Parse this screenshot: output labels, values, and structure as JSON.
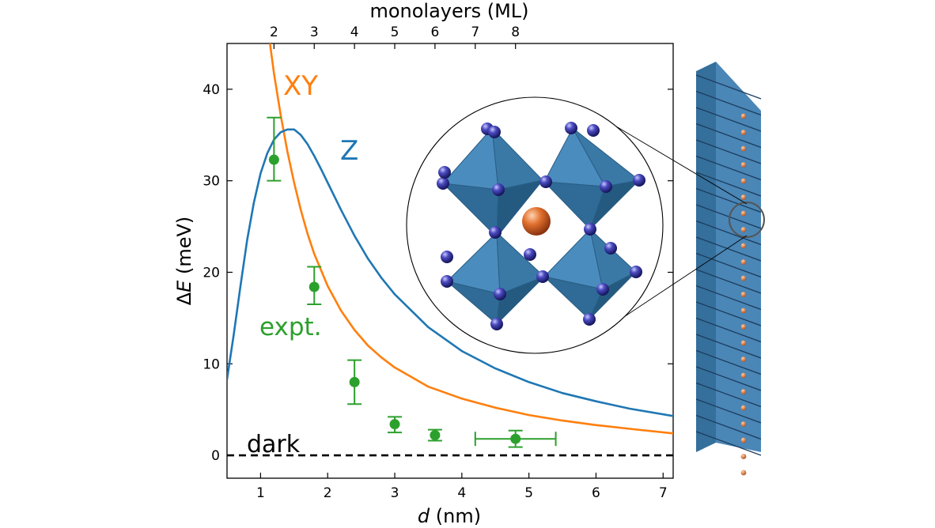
{
  "chart_data": {
    "type": "line",
    "x_axis": {
      "label_italic": "d",
      "label_rest": " (nm)",
      "range": [
        0.5,
        7.15
      ],
      "ticks": [
        1,
        2,
        3,
        4,
        5,
        6,
        7
      ]
    },
    "x_top_axis": {
      "label": "monolayers (ML)",
      "ticks": [
        "2",
        "3",
        "4",
        "5",
        "6",
        "7",
        "8"
      ],
      "tick_positions_nm": [
        1.2,
        1.8,
        2.4,
        3.0,
        3.6,
        4.2,
        4.8
      ]
    },
    "y_axis": {
      "label_prefix": "Δ",
      "label_italic": "E",
      "label_rest": " (meV)",
      "range": [
        -2.5,
        45
      ],
      "ticks": [
        0,
        10,
        20,
        30,
        40
      ]
    },
    "series": [
      {
        "name": "XY",
        "color": "#ff7f0e",
        "x": [
          1.14,
          1.2,
          1.3,
          1.4,
          1.5,
          1.6,
          1.7,
          1.8,
          2.0,
          2.2,
          2.4,
          2.6,
          2.8,
          3.0,
          3.5,
          4.0,
          4.5,
          5.0,
          5.5,
          6.0,
          6.5,
          7.15
        ],
        "y": [
          45,
          41.7,
          37.2,
          33.2,
          29.8,
          26.8,
          24.2,
          22.0,
          18.5,
          15.8,
          13.7,
          12.0,
          10.7,
          9.6,
          7.5,
          6.2,
          5.2,
          4.4,
          3.8,
          3.3,
          2.9,
          2.4
        ]
      },
      {
        "name": "Z",
        "color": "#1f77b4",
        "x": [
          0.5,
          0.6,
          0.7,
          0.8,
          0.9,
          1.0,
          1.1,
          1.2,
          1.3,
          1.4,
          1.5,
          1.6,
          1.7,
          1.8,
          1.9,
          2.0,
          2.2,
          2.4,
          2.6,
          2.8,
          3.0,
          3.5,
          4.0,
          4.5,
          5.0,
          5.5,
          6.0,
          6.5,
          7.15
        ],
        "y": [
          8.3,
          13.2,
          18.5,
          23.5,
          27.6,
          30.8,
          33.0,
          34.5,
          35.3,
          35.6,
          35.6,
          35.0,
          34.0,
          32.7,
          31.3,
          29.8,
          26.8,
          24.0,
          21.5,
          19.4,
          17.6,
          14.0,
          11.4,
          9.5,
          8.0,
          6.8,
          5.9,
          5.1,
          4.3
        ]
      },
      {
        "name": "expt.",
        "color": "#2ca02c",
        "kind": "errorbar",
        "points": [
          {
            "x": 1.2,
            "y": 32.3,
            "yerr": [
              2.3,
              4.6
            ],
            "xerr": 0
          },
          {
            "x": 1.8,
            "y": 18.4,
            "yerr": [
              1.9,
              2.2
            ],
            "xerr": 0
          },
          {
            "x": 2.4,
            "y": 8.0,
            "yerr": [
              2.4,
              2.4
            ],
            "xerr": 0
          },
          {
            "x": 3.0,
            "y": 3.4,
            "yerr": [
              0.9,
              0.8
            ],
            "xerr": 0
          },
          {
            "x": 3.6,
            "y": 2.2,
            "yerr": [
              0.6,
              0.6
            ],
            "xerr": 0
          },
          {
            "x": 4.8,
            "y": 1.8,
            "yerr": [
              0.9,
              0.9
            ],
            "xerr": 0.6
          }
        ]
      },
      {
        "name": "dark",
        "color": "#000000",
        "kind": "hline",
        "y": 0
      }
    ],
    "annotations": {
      "xy_label": "XY",
      "z_label": "Z",
      "expt_label": "expt.",
      "dark_label": "dark"
    },
    "grid": false,
    "legend": "none (inline labels)"
  },
  "illustration": {
    "description_name": "perovskite-octahedra-inset",
    "octahedron_color": "#3a79a6",
    "atom_color": "#2a2a8c",
    "center_atom_color": "#d4642a"
  }
}
